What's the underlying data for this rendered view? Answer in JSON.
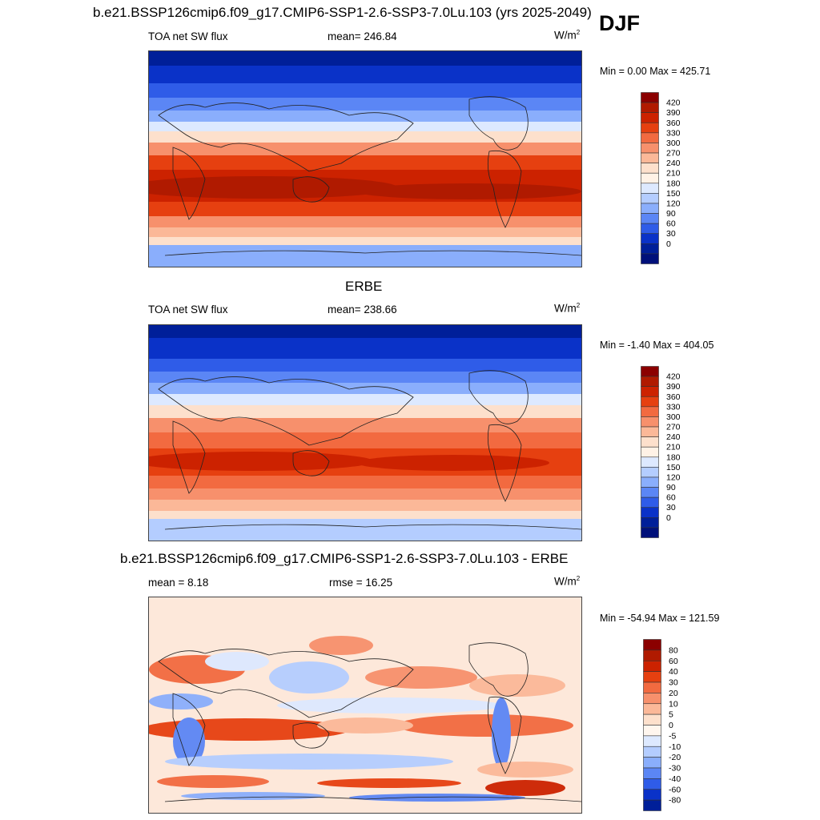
{
  "season": "DJF",
  "units_label": "W/m",
  "units_sup": "2",
  "panels": [
    {
      "title": "b.e21.BSSP126cmip6.f09_g17.CMIP6-SSP1-2.6-SSP3-7.0Lu.103 (yrs 2025-2049)",
      "left_label": "TOA net SW flux",
      "center_label": "mean= 246.84",
      "minmax": "Min =   0.00 Max = 425.71",
      "colorbar_type": "field"
    },
    {
      "title": "ERBE",
      "left_label": "TOA net SW flux",
      "center_label": "mean= 238.66",
      "minmax": "Min =  -1.40 Max = 404.05",
      "colorbar_type": "field"
    },
    {
      "title": "b.e21.BSSP126cmip6.f09_g17.CMIP6-SSP1-2.6-SSP3-7.0Lu.103 - ERBE",
      "left_label": "mean =   8.18",
      "center_label": "rmse =  16.25",
      "minmax": "Min = -54.94 Max = 121.59",
      "colorbar_type": "diff"
    }
  ],
  "colorbars": {
    "field": {
      "labels": [
        "420",
        "390",
        "360",
        "330",
        "300",
        "270",
        "240",
        "210",
        "180",
        "150",
        "120",
        "90",
        "60",
        "30",
        "0"
      ],
      "colors": [
        "#8b0000",
        "#b01a00",
        "#cc2200",
        "#e64010",
        "#f26a40",
        "#f7906c",
        "#fbb898",
        "#fde0cc",
        "#fff2e6",
        "#dde9ff",
        "#b4cdff",
        "#8aaefc",
        "#5b86f5",
        "#2f5ce8",
        "#0a32c8",
        "#001f99",
        "#00107a"
      ]
    },
    "diff": {
      "labels": [
        "80",
        "60",
        "40",
        "30",
        "20",
        "10",
        "5",
        "0",
        "-5",
        "-10",
        "-20",
        "-30",
        "-40",
        "-60",
        "-80"
      ],
      "colors": [
        "#8b0000",
        "#b01a00",
        "#cc2200",
        "#e64010",
        "#f26a40",
        "#f7906c",
        "#fbb898",
        "#fde0cc",
        "#fff6ee",
        "#dde9ff",
        "#b4cdff",
        "#8aaefc",
        "#5b86f5",
        "#2f5ce8",
        "#0a32c8",
        "#001f99"
      ]
    }
  }
}
